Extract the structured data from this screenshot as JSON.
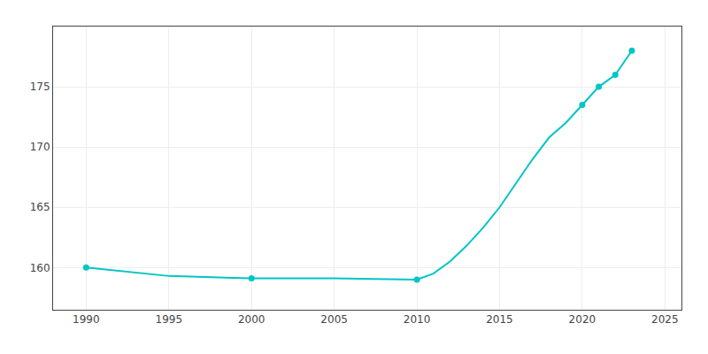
{
  "chart_data": {
    "type": "line",
    "series": [
      {
        "x": [
          1990,
          1995,
          2000,
          2005,
          2010,
          2011,
          2012,
          2013,
          2014,
          2015,
          2016,
          2017,
          2018,
          2019,
          2020,
          2021,
          2022,
          2023
        ],
        "values": [
          160,
          159.3,
          159.1,
          159.1,
          159.0,
          159.5,
          160.5,
          161.8,
          163.3,
          165.0,
          167.0,
          169.0,
          170.8,
          172.0,
          173.5,
          175.0,
          176.0,
          178.0
        ],
        "color": "#00c5c5",
        "marker": "none",
        "line_style": "solid"
      },
      {
        "x": [
          1990,
          2000,
          2010,
          2020,
          2021,
          2022,
          2023
        ],
        "values": [
          160,
          159.1,
          159.0,
          173.5,
          175.0,
          176.0,
          178.0
        ],
        "color": "#00c5c5",
        "type": "scatter",
        "marker": "circle",
        "line_style": "none"
      }
    ],
    "xlim": [
      1988,
      2026
    ],
    "ylim": [
      156.5,
      180
    ],
    "xticks": [
      1990,
      1995,
      2000,
      2005,
      2010,
      2015,
      2020,
      2025
    ],
    "yticks": [
      160,
      165,
      170,
      175
    ],
    "grid": true
  }
}
